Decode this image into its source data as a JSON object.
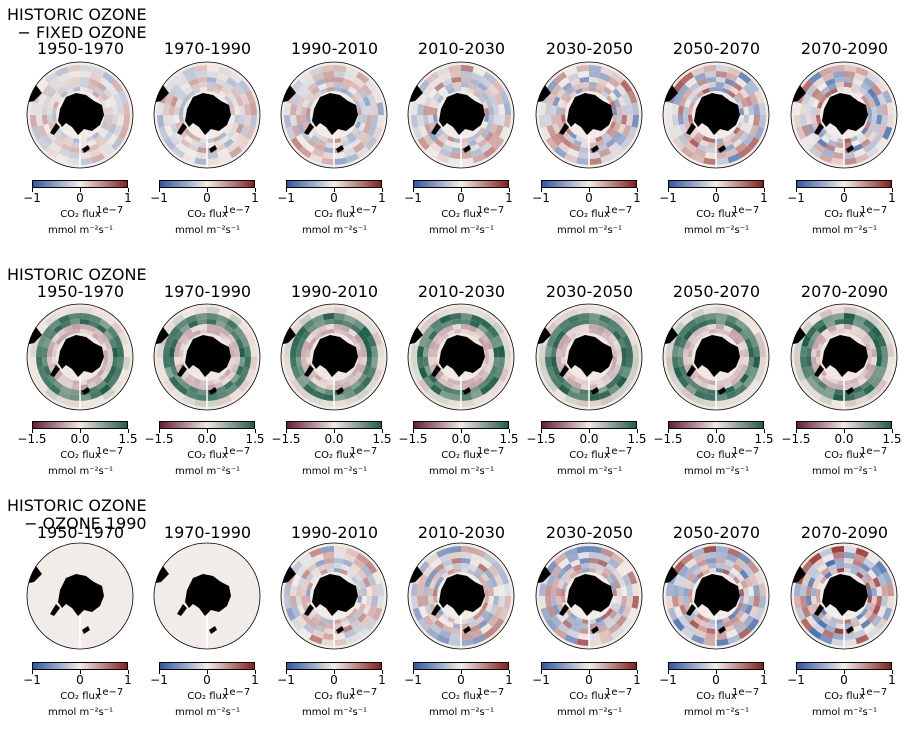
{
  "chart_data": [
    {
      "type": "heatmap",
      "row_title": "HISTORIC OZONE\n− FIXED OZONE",
      "panels": [
        "1950-1970",
        "1970-1990",
        "1990-2010",
        "2010-2030",
        "2030-2050",
        "2050-2070",
        "2070-2090"
      ],
      "colormap": "diverging blue-white-red",
      "colors": {
        "neg": "#2a5aa8",
        "mid": "#f2ece8",
        "pos": "#8b1d1d"
      },
      "clim": [
        -1,
        1
      ],
      "ticks": [
        "−1",
        "0",
        "1"
      ],
      "cbar_label": "CO₂ flux",
      "cbar_exponent": "1e−7",
      "cbar_unit": "mmol m⁻²s⁻¹"
    },
    {
      "type": "heatmap",
      "row_title": "HISTORIC OZONE",
      "panels": [
        "1950-1970",
        "1970-1990",
        "1990-2010",
        "2010-2030",
        "2030-2050",
        "2050-2070",
        "2070-2090"
      ],
      "colormap": "diverging maroon-white-green",
      "colors": {
        "neg": "#6b1a3a",
        "mid": "#f1e8e2",
        "pos": "#1e5e4a"
      },
      "clim": [
        -1.5,
        1.5
      ],
      "ticks": [
        "−1.5",
        "0.0",
        "1.5"
      ],
      "cbar_label": "CO₂ flux",
      "cbar_exponent": "1e−7",
      "cbar_unit": "mmol m⁻²s⁻¹"
    },
    {
      "type": "heatmap",
      "row_title": "HISTORIC OZONE\n− OZONE 1990",
      "panels": [
        "1950-1970",
        "1970-1990",
        "1990-2010",
        "2010-2030",
        "2030-2050",
        "2050-2070",
        "2070-2090"
      ],
      "colormap": "diverging blue-white-red",
      "colors": {
        "neg": "#2a5aa8",
        "mid": "#f2ece8",
        "pos": "#8b1d1d"
      },
      "clim": [
        -1,
        1
      ],
      "ticks": [
        "−1",
        "0",
        "1"
      ],
      "cbar_label": "CO₂ flux",
      "cbar_exponent": "1e−7",
      "cbar_unit": "mmol m⁻²s⁻¹"
    }
  ]
}
